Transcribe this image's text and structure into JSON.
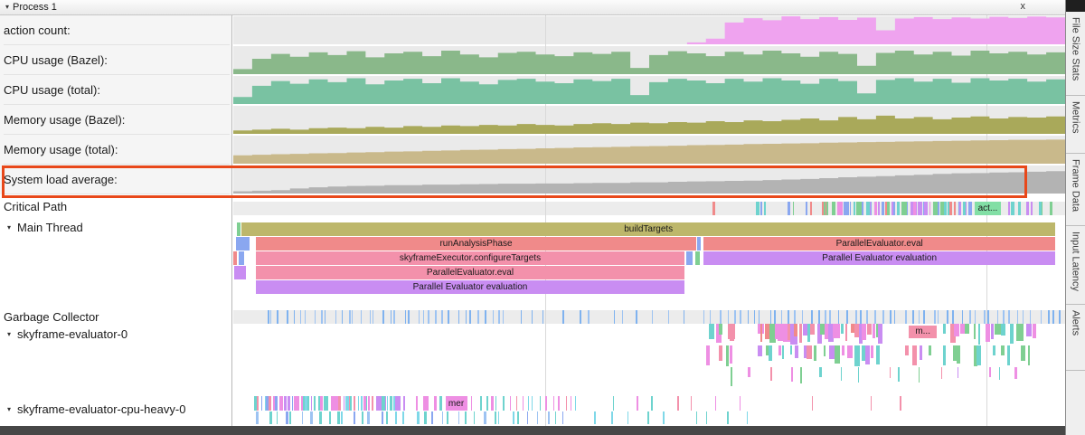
{
  "ui": {
    "arrow": "▾"
  },
  "header": {
    "title": "Process 1",
    "close_label": "x"
  },
  "annotation": {
    "color": "#e8481a"
  },
  "counters": [
    {
      "label": "action count:",
      "color": "#efa3ef",
      "values": [
        0,
        0,
        0,
        0,
        0,
        0,
        0,
        0,
        0,
        0,
        0,
        0,
        0,
        0,
        0,
        0,
        0,
        0,
        0,
        0,
        0,
        0,
        0,
        0,
        0.07,
        0.2,
        0.78,
        0.93,
        0.86,
        1,
        0.9,
        0.97,
        0.87,
        0.95,
        0.5,
        0.92,
        0.97,
        0.9,
        0.96,
        0.92,
        0.98,
        0.94,
        0.99,
        0.96
      ]
    },
    {
      "label": "CPU usage (Bazel):",
      "color": "#8ab88a",
      "values": [
        0.18,
        0.55,
        0.72,
        0.62,
        0.78,
        0.68,
        0.82,
        0.6,
        0.74,
        0.8,
        0.64,
        0.84,
        0.7,
        0.6,
        0.76,
        0.8,
        0.7,
        0.64,
        0.78,
        0.72,
        0.8,
        0.22,
        0.68,
        0.82,
        0.74,
        0.64,
        0.8,
        0.7,
        0.84,
        0.74,
        0.62,
        0.8,
        0.72,
        0.3,
        0.76,
        0.84,
        0.7,
        0.8,
        0.66,
        0.84,
        0.74,
        0.8,
        0.7,
        0.78
      ]
    },
    {
      "label": "CPU usage (total):",
      "color": "#79c2a2",
      "values": [
        0.25,
        0.65,
        0.82,
        0.72,
        0.88,
        0.78,
        0.92,
        0.7,
        0.84,
        0.9,
        0.74,
        0.92,
        0.8,
        0.7,
        0.86,
        0.9,
        0.8,
        0.74,
        0.88,
        0.82,
        0.9,
        0.32,
        0.78,
        0.9,
        0.84,
        0.74,
        0.9,
        0.8,
        0.92,
        0.84,
        0.72,
        0.9,
        0.82,
        0.38,
        0.86,
        0.92,
        0.8,
        0.9,
        0.76,
        0.92,
        0.84,
        0.9,
        0.8,
        0.88
      ]
    },
    {
      "label": "Memory usage (Bazel):",
      "color": "#a9a95a",
      "values": [
        0.12,
        0.15,
        0.18,
        0.15,
        0.2,
        0.22,
        0.2,
        0.25,
        0.22,
        0.28,
        0.25,
        0.3,
        0.28,
        0.32,
        0.3,
        0.35,
        0.32,
        0.3,
        0.35,
        0.38,
        0.35,
        0.4,
        0.38,
        0.42,
        0.4,
        0.45,
        0.42,
        0.48,
        0.45,
        0.5,
        0.55,
        0.48,
        0.6,
        0.52,
        0.65,
        0.55,
        0.6,
        0.52,
        0.58,
        0.62,
        0.55,
        0.6,
        0.58,
        0.62
      ]
    },
    {
      "label": "Memory usage (total):",
      "color": "#c9b98b",
      "values": [
        0.3,
        0.32,
        0.34,
        0.35,
        0.37,
        0.38,
        0.4,
        0.41,
        0.43,
        0.44,
        0.46,
        0.47,
        0.49,
        0.5,
        0.52,
        0.53,
        0.55,
        0.56,
        0.58,
        0.59,
        0.6,
        0.62,
        0.63,
        0.64,
        0.66,
        0.67,
        0.68,
        0.7,
        0.71,
        0.72,
        0.73,
        0.75,
        0.76,
        0.77,
        0.78,
        0.79,
        0.8,
        0.81,
        0.82,
        0.83,
        0.84,
        0.85,
        0.85,
        0.86
      ]
    },
    {
      "label": "System load average:",
      "color": "#b3b3b3",
      "values": [
        0.08,
        0.1,
        0.12,
        0.18,
        0.22,
        0.25,
        0.27,
        0.28,
        0.3,
        0.3,
        0.32,
        0.32,
        0.33,
        0.34,
        0.35,
        0.35,
        0.36,
        0.36,
        0.37,
        0.38,
        0.38,
        0.4,
        0.4,
        0.42,
        0.43,
        0.44,
        0.45,
        0.46,
        0.48,
        0.5,
        0.52,
        0.55,
        0.58,
        0.6,
        0.62,
        0.65,
        0.67,
        0.7,
        0.72,
        0.73,
        0.75,
        0.76,
        0.78,
        0.8
      ]
    }
  ],
  "critical_path": {
    "label": "Critical Path",
    "tick_regions": [
      {
        "s": 0.573,
        "e": 0.578,
        "n": 1,
        "wmin": 2,
        "wmax": 4,
        "colors": [
          "#f08a8a"
        ]
      },
      {
        "s": 0.625,
        "e": 0.642,
        "n": 3,
        "wmin": 2,
        "wmax": 4,
        "colors": [
          "#8aa7f0",
          "#6ed3ce"
        ]
      },
      {
        "s": 0.66,
        "e": 0.7,
        "n": 4,
        "wmin": 1,
        "wmax": 3,
        "colors": [
          "#f08a8a",
          "#8aa7f0",
          "#7fcf92"
        ]
      },
      {
        "s": 0.705,
        "e": 0.887,
        "n": 48,
        "wmin": 1,
        "wmax": 5,
        "colors": [
          "#8aa7f0",
          "#6ed3ce",
          "#c98df2",
          "#7fcf92",
          "#f08a8a",
          "#ee8fe3"
        ]
      },
      {
        "s": 0.926,
        "e": 0.985,
        "n": 8,
        "wmin": 1,
        "wmax": 4,
        "colors": [
          "#8aa7f0",
          "#6ed3ce",
          "#c98df2",
          "#7fcf92"
        ]
      }
    ],
    "slices": [
      {
        "s": 0.891,
        "e": 0.923,
        "label": "act...",
        "c": "#82dfa5"
      }
    ]
  },
  "main_thread": {
    "label": "Main Thread",
    "rows": [
      [
        {
          "s": 0.0043,
          "e": 0.009,
          "c": "#7fcf92"
        },
        {
          "s": 0.0098,
          "e": 0.9885,
          "label": "buildTargets",
          "c": "#bdb76b"
        }
      ],
      [
        {
          "s": 0.0033,
          "e": 0.0196,
          "c": "#8aa7f0"
        },
        {
          "s": 0.0272,
          "e": 0.5565,
          "label": "runAnalysisPhase",
          "c": "#f08a8a"
        },
        {
          "s": 0.558,
          "e": 0.562,
          "c": "#8aa7f0"
        },
        {
          "s": 0.5652,
          "e": 0.9885,
          "label": "ParallelEvaluator.eval",
          "c": "#f08a8a"
        }
      ],
      [
        {
          "s": 0.0,
          "e": 0.0045,
          "c": "#f08a8a"
        },
        {
          "s": 0.0065,
          "e": 0.013,
          "c": "#8aa7f0"
        },
        {
          "s": 0.0272,
          "e": 0.5424,
          "label": "skyframeExecutor.configureTargets",
          "c": "#f391ab"
        },
        {
          "s": 0.545,
          "e": 0.552,
          "c": "#8aa7f0"
        },
        {
          "s": 0.5555,
          "e": 0.561,
          "c": "#7fcf92"
        },
        {
          "s": 0.5652,
          "e": 0.9885,
          "label": "Parallel Evaluator evaluation",
          "c": "#c98df2"
        }
      ],
      [
        {
          "s": 0.0011,
          "e": 0.0152,
          "c": "#c98df2"
        },
        {
          "s": 0.0272,
          "e": 0.5424,
          "label": "ParallelEvaluator.eval",
          "c": "#f391ab"
        }
      ],
      [
        {
          "s": 0.0272,
          "e": 0.5424,
          "label": "Parallel Evaluator evaluation",
          "c": "#c98df2"
        }
      ]
    ]
  },
  "garbage_collector": {
    "label": "Garbage Collector",
    "tick_regions": [
      {
        "s": 0.035,
        "e": 0.33,
        "n": 36,
        "wmin": 1,
        "wmax": 2,
        "colors": [
          "#9dc3f2",
          "#7fb2ef"
        ]
      },
      {
        "s": 0.33,
        "e": 0.57,
        "n": 13,
        "wmin": 1,
        "wmax": 2,
        "colors": [
          "#9dc3f2",
          "#7fb2ef"
        ]
      },
      {
        "s": 0.57,
        "e": 0.998,
        "n": 50,
        "wmin": 1,
        "wmax": 2,
        "colors": [
          "#9dc3f2",
          "#7fb2ef"
        ]
      }
    ]
  },
  "skyframe0": {
    "label": "skyframe-evaluator-0",
    "rows": [
      {
        "ticks": [
          {
            "s": 0.567,
            "e": 0.603,
            "n": 5,
            "wmin": 3,
            "wmax": 8,
            "hvar": 1,
            "colors": [
              "#f391ab",
              "#7fcf92",
              "#c98df2",
              "#6ed3ce",
              "#ee8fe3"
            ]
          },
          {
            "s": 0.627,
            "e": 0.779,
            "n": 30,
            "wmin": 2,
            "wmax": 8,
            "hvar": 1,
            "colors": [
              "#7fcf92",
              "#f391ab",
              "#6ed3ce",
              "#c98df2",
              "#ee8fe3",
              "#f08a8a"
            ]
          },
          {
            "s": 0.85,
            "e": 0.964,
            "n": 16,
            "wmin": 2,
            "wmax": 7,
            "hvar": 1,
            "colors": [
              "#7fcf92",
              "#f391ab",
              "#6ed3ce",
              "#c98df2",
              "#ee8fe3"
            ]
          }
        ],
        "slices": [
          {
            "s": 0.812,
            "e": 0.846,
            "label": "m...",
            "c": "#f391ab",
            "h": 62,
            "t": 8
          }
        ]
      },
      {
        "ticks": [
          {
            "s": 0.567,
            "e": 0.603,
            "n": 4,
            "wmin": 2,
            "wmax": 7,
            "hvar": 1,
            "colors": [
              "#ee8fe3",
              "#7fcf92",
              "#6ed3ce",
              "#f391ab"
            ]
          },
          {
            "s": 0.627,
            "e": 0.779,
            "n": 20,
            "wmin": 2,
            "wmax": 7,
            "hvar": 1,
            "colors": [
              "#7fcf92",
              "#f391ab",
              "#6ed3ce",
              "#c98df2",
              "#ee8fe3"
            ]
          },
          {
            "s": 0.8,
            "e": 0.96,
            "n": 14,
            "wmin": 2,
            "wmax": 6,
            "hvar": 1,
            "colors": [
              "#f391ab",
              "#6ed3ce",
              "#c98df2",
              "#7fcf92"
            ]
          }
        ]
      },
      {
        "ticks": [
          {
            "s": 0.58,
            "e": 0.96,
            "n": 16,
            "wmin": 1,
            "wmax": 3,
            "hvar": 1,
            "colors": [
              "#f391ab",
              "#6ed3ce",
              "#c98df2",
              "#ee8fe3",
              "#7fcf92"
            ]
          }
        ]
      }
    ]
  },
  "cpu_heavy": {
    "label": "skyframe-evaluator-cpu-heavy-0",
    "rows": [
      {
        "ticks": [
          {
            "s": 0.024,
            "e": 0.205,
            "n": 50,
            "wmin": 1,
            "wmax": 4,
            "colors": [
              "#f391ab",
              "#ee8fe3",
              "#c98df2",
              "#6ed3ce",
              "#7fd8e8",
              "#8aa7f0"
            ]
          },
          {
            "s": 0.215,
            "e": 0.252,
            "n": 5,
            "wmin": 1,
            "wmax": 3,
            "colors": [
              "#ee8fe3",
              "#6ed3ce"
            ]
          },
          {
            "s": 0.285,
            "e": 0.415,
            "n": 18,
            "wmin": 1,
            "wmax": 3,
            "colors": [
              "#f391ab",
              "#ee8fe3",
              "#7fd8e8",
              "#6ed3ce"
            ]
          },
          {
            "s": 0.44,
            "e": 0.62,
            "n": 7,
            "wmin": 1,
            "wmax": 2,
            "colors": [
              "#ee8fe3",
              "#f391ab",
              "#6ed3ce"
            ]
          },
          {
            "s": 0.66,
            "e": 0.83,
            "n": 3,
            "wmin": 1,
            "wmax": 2,
            "colors": [
              "#f391ab",
              "#6ed3ce"
            ]
          }
        ],
        "slices": [
          {
            "s": 0.255,
            "e": 0.281,
            "label": "mer",
            "c": "#ee8fe3"
          }
        ]
      },
      {
        "ticks": [
          {
            "s": 0.024,
            "e": 0.4,
            "n": 36,
            "wmin": 1,
            "wmax": 3,
            "colors": [
              "#6ed3ce",
              "#7fd8e8",
              "#8aa7f0",
              "#9dc3f2"
            ]
          },
          {
            "s": 0.42,
            "e": 0.63,
            "n": 9,
            "wmin": 1,
            "wmax": 2,
            "colors": [
              "#6ed3ce",
              "#7fd8e8"
            ]
          }
        ]
      }
    ]
  },
  "sidebar_tabs": [
    {
      "label": "File Size Stats"
    },
    {
      "label": "Metrics"
    },
    {
      "label": "Frame Data"
    },
    {
      "label": "Input Latency"
    },
    {
      "label": "Alerts"
    }
  ]
}
